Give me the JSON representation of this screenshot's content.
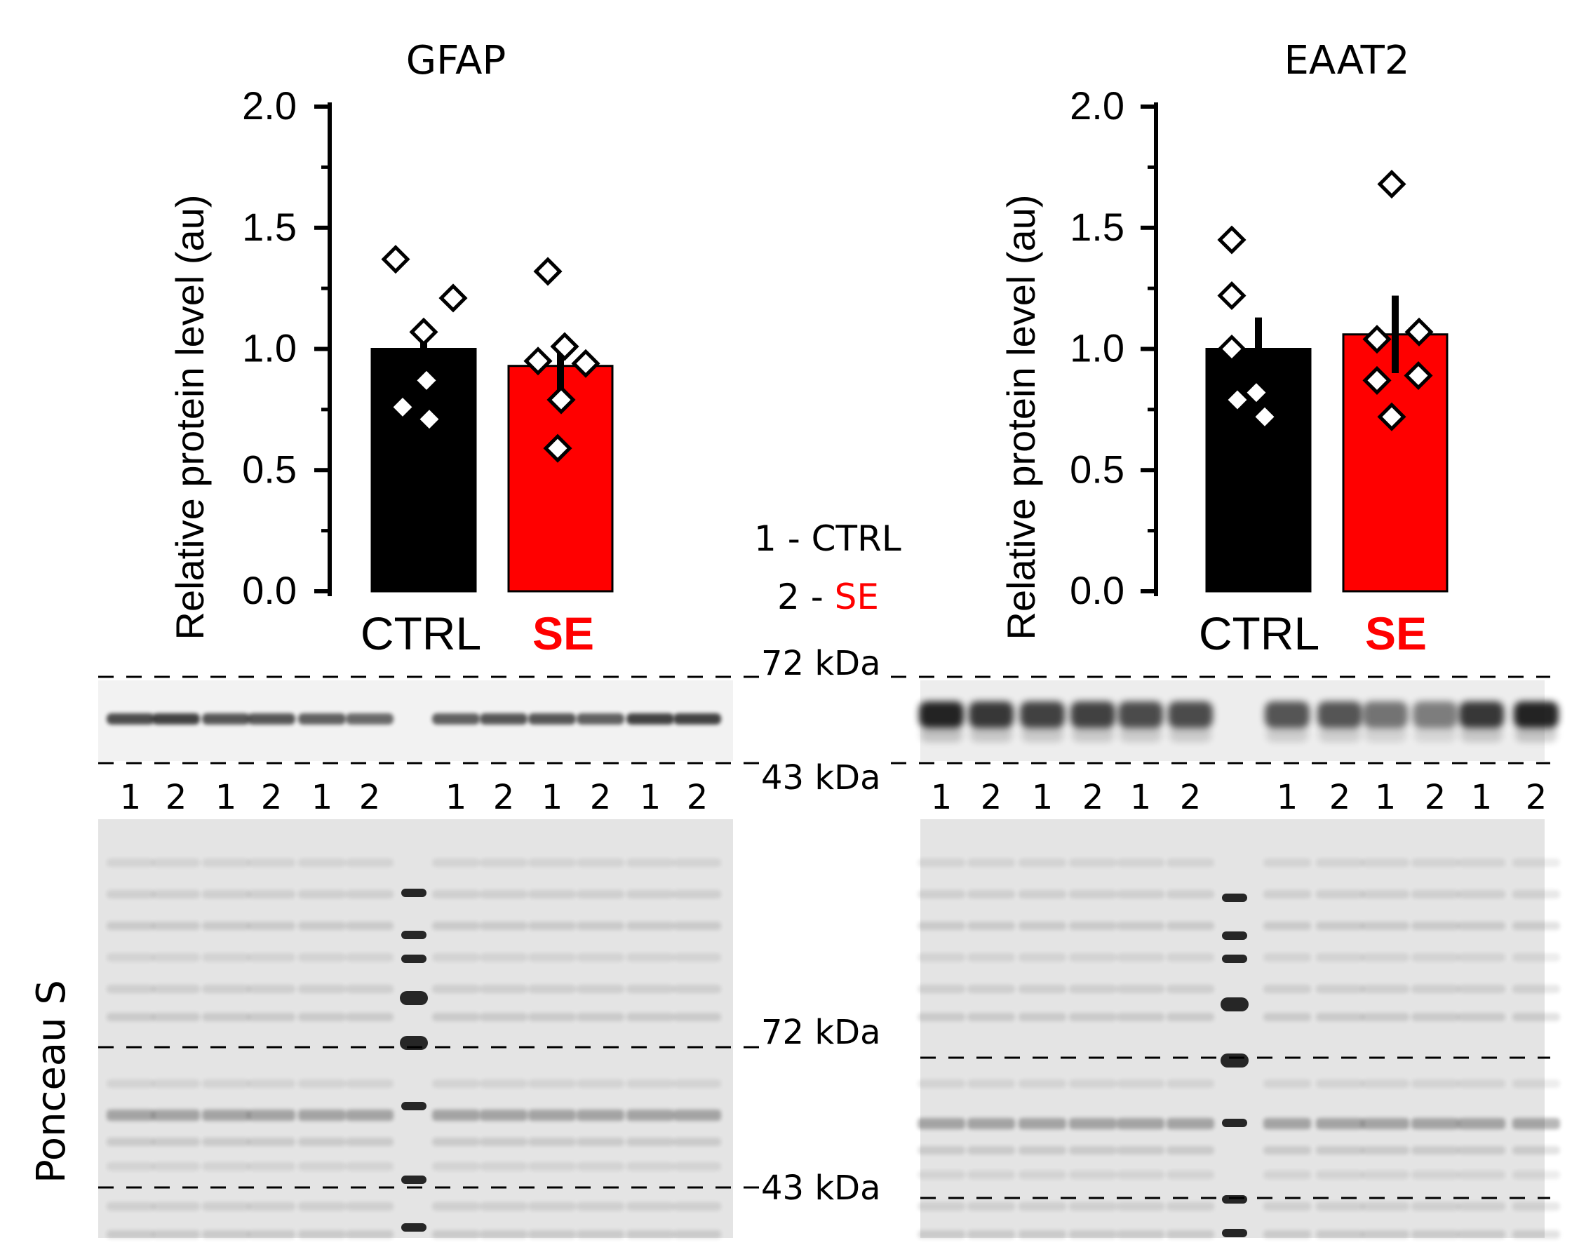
{
  "chart_data": [
    {
      "type": "bar",
      "title": "GFAP",
      "ylabel": "Relative protein level (au)",
      "xlabel": "",
      "ylim": [
        0,
        2.0
      ],
      "yticks": [
        "0.0",
        "0.5",
        "1.0",
        "1.5",
        "2.0"
      ],
      "categories": [
        "CTRL",
        "SE"
      ],
      "values": [
        1.0,
        0.93
      ],
      "errors": [
        0.1,
        0.1
      ],
      "points": [
        [
          1.37,
          1.21,
          1.07,
          0.87,
          0.76,
          0.71
        ],
        [
          1.32,
          1.01,
          0.95,
          0.94,
          0.79,
          0.59
        ]
      ],
      "colors": [
        "#000000",
        "#ff0000"
      ]
    },
    {
      "type": "bar",
      "title": "EAAT2",
      "ylabel": "Relative protein level (au)",
      "xlabel": "",
      "ylim": [
        0,
        2.0
      ],
      "yticks": [
        "0.0",
        "0.5",
        "1.0",
        "1.5",
        "2.0"
      ],
      "categories": [
        "CTRL",
        "SE"
      ],
      "values": [
        1.0,
        1.06
      ],
      "errors": [
        0.13,
        0.16
      ],
      "points": [
        [
          1.45,
          1.22,
          1.0,
          0.82,
          0.79,
          0.72
        ],
        [
          1.68,
          1.07,
          1.04,
          0.89,
          0.87,
          0.72
        ]
      ],
      "colors": [
        "#000000",
        "#ff0000"
      ]
    }
  ],
  "legend": {
    "line1": {
      "key": "1 - ",
      "label": "CTRL"
    },
    "line2": {
      "key": "2 - ",
      "label": "SE"
    },
    "label_color": "#ff0000"
  },
  "blots": {
    "marker_upper": "72 kDa",
    "marker_lower": "43 kDa",
    "lane_labels": [
      "1",
      "2",
      "1",
      "2",
      "1",
      "2",
      "1",
      "2",
      "1",
      "2",
      "1",
      "2"
    ],
    "left_band_intensity": [
      0.85,
      0.9,
      0.8,
      0.8,
      0.75,
      0.7,
      0.75,
      0.8,
      0.8,
      0.75,
      0.9,
      0.9
    ],
    "right_band_intensity": [
      1.0,
      0.9,
      0.85,
      0.85,
      0.8,
      0.8,
      0.75,
      0.75,
      0.6,
      0.55,
      0.9,
      1.0
    ]
  },
  "ponceau": {
    "label": "Ponceau S",
    "marker_upper": "72 kDa",
    "marker_lower": "43 kDa"
  }
}
